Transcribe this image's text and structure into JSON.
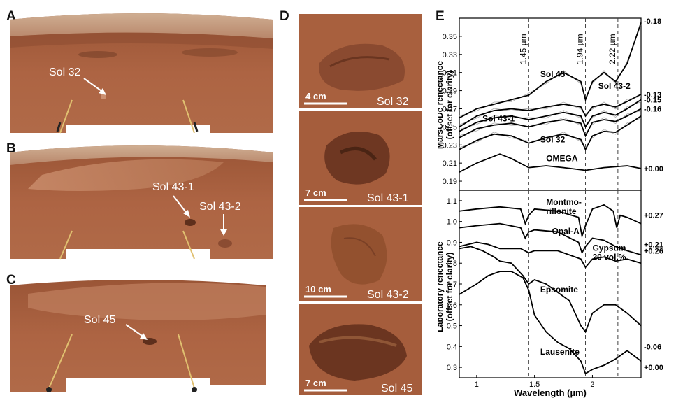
{
  "panels": {
    "A": {
      "letter": "A",
      "label": "Sol 32"
    },
    "B": {
      "letter": "B",
      "label1": "Sol 43-1",
      "label2": "Sol 43-2"
    },
    "C": {
      "letter": "C",
      "label": "Sol 45"
    },
    "D": {
      "letter": "D",
      "tiles": [
        {
          "sol": "Sol 32",
          "scale": "4 cm"
        },
        {
          "sol": "Sol 43-1",
          "scale": "7 cm"
        },
        {
          "sol": "Sol 43-2",
          "scale": "10 cm"
        },
        {
          "sol": "Sol 45",
          "scale": "7 cm"
        }
      ]
    },
    "E": {
      "letter": "E"
    }
  },
  "colors": {
    "mars_ground": "#a8603e",
    "mars_dark": "#7d4229",
    "mars_sky": "#c9a283",
    "spectra": "#000000",
    "raw_spectra": "#aaaaaa"
  },
  "chart_data": [
    {
      "type": "line",
      "ylabel": "MarsCoDe reflectance (offset for clarity)",
      "ylim": [
        0.18,
        0.37
      ],
      "yticks": [
        "0.19",
        "0.21",
        "0.23",
        "0.25",
        "0.27",
        "0.29",
        "0.31",
        "0.33",
        "0.35"
      ],
      "xlim": [
        0.85,
        2.42
      ],
      "vlines": [
        "1.45 µm",
        "1.94 µm",
        "2.22 µm"
      ],
      "vline_x": [
        1.45,
        1.94,
        2.22
      ],
      "series": [
        {
          "name": "Sol 45",
          "offset": "-0.18",
          "x": [
            0.85,
            1.0,
            1.15,
            1.3,
            1.45,
            1.6,
            1.75,
            1.9,
            1.94,
            2.0,
            2.1,
            2.2,
            2.3,
            2.42
          ],
          "y": [
            0.26,
            0.27,
            0.275,
            0.28,
            0.285,
            0.3,
            0.31,
            0.3,
            0.28,
            0.3,
            0.31,
            0.3,
            0.32,
            0.365
          ]
        },
        {
          "name": "Sol 43-2",
          "offset": "-0.13",
          "x": [
            0.85,
            1.0,
            1.15,
            1.3,
            1.45,
            1.6,
            1.75,
            1.9,
            1.94,
            2.0,
            2.1,
            2.2,
            2.3,
            2.42
          ],
          "y": [
            0.25,
            0.262,
            0.268,
            0.27,
            0.268,
            0.272,
            0.275,
            0.272,
            0.262,
            0.272,
            0.275,
            0.272,
            0.278,
            0.286
          ]
        },
        {
          "name": "",
          "offset": "-0.15",
          "x": [
            0.85,
            1.0,
            1.15,
            1.3,
            1.45,
            1.6,
            1.75,
            1.9,
            1.94,
            2.0,
            2.1,
            2.2,
            2.3,
            2.42
          ],
          "y": [
            0.245,
            0.255,
            0.26,
            0.262,
            0.258,
            0.262,
            0.266,
            0.262,
            0.25,
            0.262,
            0.266,
            0.263,
            0.27,
            0.28
          ]
        },
        {
          "name": "Sol 43-1",
          "offset": "-0.16",
          "x": [
            0.85,
            1.0,
            1.15,
            1.3,
            1.45,
            1.6,
            1.75,
            1.9,
            1.94,
            2.0,
            2.1,
            2.2,
            2.3,
            2.42
          ],
          "y": [
            0.238,
            0.248,
            0.252,
            0.254,
            0.25,
            0.255,
            0.258,
            0.254,
            0.24,
            0.255,
            0.258,
            0.256,
            0.262,
            0.27
          ]
        },
        {
          "name": "Sol 32",
          "offset": "",
          "x": [
            0.85,
            1.0,
            1.15,
            1.3,
            1.45,
            1.6,
            1.75,
            1.9,
            1.94,
            2.0,
            2.1,
            2.2,
            2.3,
            2.42
          ],
          "y": [
            0.225,
            0.235,
            0.242,
            0.24,
            0.232,
            0.238,
            0.242,
            0.236,
            0.225,
            0.24,
            0.245,
            0.244,
            0.252,
            0.262
          ]
        },
        {
          "name": "OMEGA",
          "offset": "+0.00",
          "x": [
            0.85,
            1.0,
            1.1,
            1.2,
            1.3,
            1.45,
            1.6,
            1.75,
            1.94,
            2.1,
            2.3,
            2.42
          ],
          "y": [
            0.2,
            0.21,
            0.215,
            0.22,
            0.215,
            0.205,
            0.207,
            0.205,
            0.202,
            0.205,
            0.207,
            0.204
          ]
        }
      ]
    },
    {
      "type": "line",
      "ylabel": "Laboratory reflectance (offset for clarity)",
      "xlabel": "Wavelength (µm)",
      "ylim": [
        0.25,
        1.15
      ],
      "yticks": [
        "0.3",
        "0.4",
        "0.5",
        "0.6",
        "0.7",
        "0.8",
        "0.9",
        "1.0",
        "1.1"
      ],
      "xticks": [
        "1",
        "1.5",
        "2"
      ],
      "xlim": [
        0.85,
        2.42
      ],
      "series": [
        {
          "name": "Montmo-\nrillonite",
          "offset": "+0.27",
          "x": [
            0.85,
            1.0,
            1.2,
            1.38,
            1.42,
            1.45,
            1.5,
            1.7,
            1.88,
            1.91,
            1.94,
            2.0,
            2.1,
            2.18,
            2.21,
            2.24,
            2.3,
            2.42
          ],
          "y": [
            1.05,
            1.06,
            1.07,
            1.06,
            0.99,
            1.03,
            1.06,
            1.05,
            1.02,
            0.93,
            0.98,
            1.06,
            1.08,
            1.05,
            0.97,
            1.03,
            1.02,
            0.99
          ]
        },
        {
          "name": "Opal-A",
          "offset": "+0.21",
          "x": [
            0.85,
            1.0,
            1.2,
            1.38,
            1.42,
            1.45,
            1.5,
            1.7,
            1.88,
            1.91,
            1.94,
            2.0,
            2.1,
            2.2,
            2.3,
            2.42
          ],
          "y": [
            0.97,
            0.98,
            0.99,
            0.97,
            0.92,
            0.95,
            0.96,
            0.95,
            0.9,
            0.85,
            0.88,
            0.92,
            0.91,
            0.88,
            0.86,
            0.84
          ]
        },
        {
          "name": "Gypsum\n20 vol.%",
          "offset": "+0.26",
          "x": [
            0.85,
            1.0,
            1.1,
            1.2,
            1.38,
            1.45,
            1.5,
            1.7,
            1.9,
            1.94,
            2.0,
            2.1,
            2.2,
            2.3,
            2.42
          ],
          "y": [
            0.88,
            0.9,
            0.89,
            0.87,
            0.87,
            0.85,
            0.86,
            0.86,
            0.82,
            0.78,
            0.82,
            0.83,
            0.81,
            0.82,
            0.8
          ]
        },
        {
          "name": "Epsomite",
          "offset": "",
          "x": [
            0.85,
            0.95,
            1.05,
            1.15,
            1.2,
            1.3,
            1.4,
            1.45,
            1.5,
            1.6,
            1.7,
            1.8,
            1.9,
            1.94,
            2.0,
            2.1,
            2.2,
            2.3,
            2.42
          ],
          "y": [
            0.87,
            0.88,
            0.86,
            0.83,
            0.81,
            0.8,
            0.74,
            0.7,
            0.72,
            0.7,
            0.66,
            0.62,
            0.5,
            0.47,
            0.56,
            0.6,
            0.6,
            0.56,
            0.5
          ]
        },
        {
          "name": "Lausenite",
          "offset": "-0.06",
          "x": [
            0.85,
            1.0,
            1.1,
            1.2,
            1.3,
            1.4,
            1.45,
            1.5,
            1.6,
            1.7,
            1.8,
            1.9,
            1.94,
            2.0,
            2.1,
            2.2,
            2.3,
            2.42
          ],
          "y": [
            0.65,
            0.7,
            0.74,
            0.76,
            0.76,
            0.73,
            0.67,
            0.55,
            0.47,
            0.42,
            0.39,
            0.33,
            0.27,
            0.29,
            0.31,
            0.34,
            0.38,
            0.33
          ]
        }
      ],
      "extra_offsets": [
        "+0.00"
      ]
    }
  ],
  "axis_labels": {
    "top_y1": "MarsCoDe reflectance",
    "top_y2": "(offset for clarity)",
    "bot_y1": "Laboratory reflectance",
    "bot_y2": "(offset for clarity)",
    "x": "Wavelength (µm)"
  }
}
